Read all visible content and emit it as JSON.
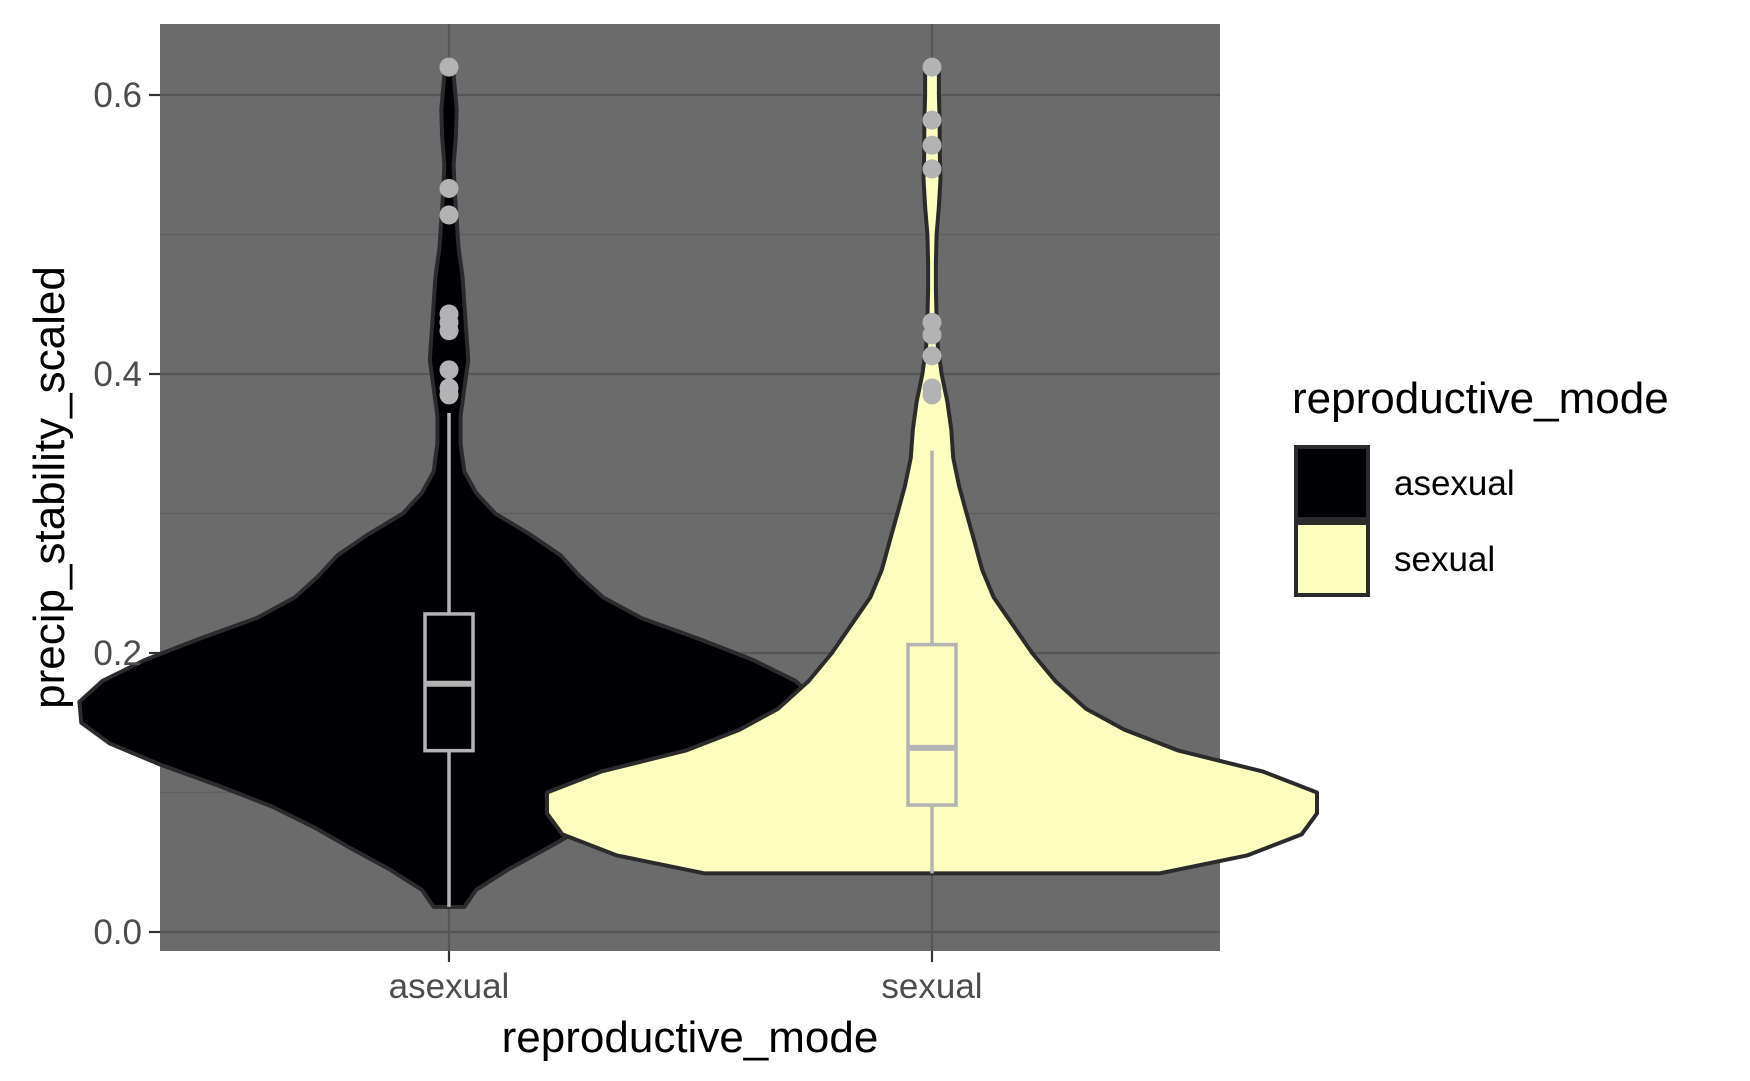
{
  "chart_data": {
    "type": "violin",
    "xlabel": "reproductive_mode",
    "ylabel": "precip_stability_scaled",
    "ylim": [
      -0.013,
      0.65
    ],
    "y_ticks": [
      0.0,
      0.2,
      0.4,
      0.6
    ],
    "y_tick_labels": [
      "0.0",
      "0.2",
      "0.4",
      "0.6"
    ],
    "categories": [
      "asexual",
      "sexual"
    ],
    "legend": {
      "title": "reproductive_mode",
      "placement": "right",
      "entries": [
        {
          "label": "asexual",
          "color": "#000004"
        },
        {
          "label": "sexual",
          "color": "#FCFDBF"
        }
      ]
    },
    "grid": true,
    "panel_background": "#6B6B6B",
    "colors": {
      "asexual": "#000004",
      "sexual": "#FCFDBF",
      "outline": "#2b2b2b",
      "box": "#b3b3b3",
      "points": "#b3b3b3"
    },
    "series": [
      {
        "category": "asexual",
        "density": [
          [
            0.018,
            0.04
          ],
          [
            0.03,
            0.07
          ],
          [
            0.045,
            0.155
          ],
          [
            0.06,
            0.255
          ],
          [
            0.075,
            0.35
          ],
          [
            0.09,
            0.46
          ],
          [
            0.105,
            0.6
          ],
          [
            0.12,
            0.75
          ],
          [
            0.135,
            0.88
          ],
          [
            0.15,
            0.955
          ],
          [
            0.165,
            0.96
          ],
          [
            0.18,
            0.9
          ],
          [
            0.195,
            0.79
          ],
          [
            0.21,
            0.65
          ],
          [
            0.225,
            0.5
          ],
          [
            0.24,
            0.4
          ],
          [
            0.255,
            0.34
          ],
          [
            0.27,
            0.29
          ],
          [
            0.285,
            0.21
          ],
          [
            0.3,
            0.12
          ],
          [
            0.315,
            0.07
          ],
          [
            0.33,
            0.04
          ],
          [
            0.35,
            0.03
          ],
          [
            0.37,
            0.03
          ],
          [
            0.39,
            0.04
          ],
          [
            0.41,
            0.05
          ],
          [
            0.43,
            0.045
          ],
          [
            0.45,
            0.04
          ],
          [
            0.47,
            0.035
          ],
          [
            0.49,
            0.025
          ],
          [
            0.51,
            0.02
          ],
          [
            0.53,
            0.015
          ],
          [
            0.55,
            0.012
          ],
          [
            0.57,
            0.018
          ],
          [
            0.59,
            0.02
          ],
          [
            0.605,
            0.015
          ],
          [
            0.62,
            0.01
          ]
        ],
        "box": {
          "min": 0.018,
          "q1": 0.13,
          "median": 0.178,
          "q3": 0.228,
          "max": 0.372
        },
        "outliers": [
          0.385,
          0.39,
          0.403,
          0.431,
          0.437,
          0.443,
          0.514,
          0.533,
          0.62
        ]
      },
      {
        "category": "sexual",
        "density": [
          [
            0.042,
            0.59
          ],
          [
            0.055,
            0.82
          ],
          [
            0.07,
            0.96
          ],
          [
            0.085,
            1.0
          ],
          [
            0.1,
            1.0
          ],
          [
            0.115,
            0.86
          ],
          [
            0.13,
            0.64
          ],
          [
            0.145,
            0.5
          ],
          [
            0.16,
            0.4
          ],
          [
            0.18,
            0.32
          ],
          [
            0.2,
            0.26
          ],
          [
            0.22,
            0.21
          ],
          [
            0.24,
            0.16
          ],
          [
            0.26,
            0.13
          ],
          [
            0.28,
            0.11
          ],
          [
            0.3,
            0.09
          ],
          [
            0.32,
            0.07
          ],
          [
            0.34,
            0.055
          ],
          [
            0.36,
            0.05
          ],
          [
            0.38,
            0.04
          ],
          [
            0.4,
            0.025
          ],
          [
            0.42,
            0.015
          ],
          [
            0.44,
            0.012
          ],
          [
            0.46,
            0.01
          ],
          [
            0.48,
            0.01
          ],
          [
            0.5,
            0.012
          ],
          [
            0.52,
            0.018
          ],
          [
            0.54,
            0.022
          ],
          [
            0.56,
            0.02
          ],
          [
            0.58,
            0.02
          ],
          [
            0.6,
            0.018
          ],
          [
            0.62,
            0.018
          ]
        ],
        "box": {
          "min": 0.042,
          "q1": 0.091,
          "median": 0.132,
          "q3": 0.206,
          "max": 0.345
        },
        "outliers": [
          0.385,
          0.39,
          0.413,
          0.428,
          0.437,
          0.547,
          0.564,
          0.582,
          0.62
        ]
      }
    ]
  }
}
